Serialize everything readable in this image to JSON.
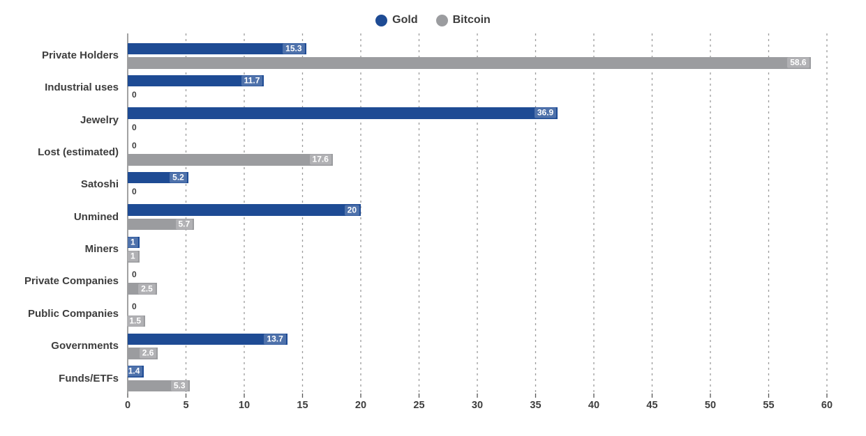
{
  "legend": {
    "items": [
      {
        "label": "Gold"
      },
      {
        "label": "Bitcoin"
      }
    ]
  },
  "chart_data": {
    "type": "bar",
    "orientation": "horizontal",
    "title": "",
    "xlabel": "",
    "ylabel": "",
    "categories": [
      "Private Holders",
      "Industrial uses",
      "Jewelry",
      "Lost (estimated)",
      "Satoshi",
      "Unmined",
      "Miners",
      "Private Companies",
      "Public Companies",
      "Governments",
      "Funds/ETFs"
    ],
    "series": [
      {
        "name": "Gold",
        "color": "#1e4b94",
        "values": [
          15.3,
          11.7,
          36.9,
          0,
          5.2,
          20,
          1,
          0,
          0,
          13.7,
          1.4
        ]
      },
      {
        "name": "Bitcoin",
        "color": "#9b9c9f",
        "values": [
          58.6,
          0,
          0,
          17.6,
          0,
          5.7,
          1,
          2.5,
          1.5,
          2.6,
          5.3
        ]
      }
    ],
    "x_ticks": [
      0,
      5,
      10,
      15,
      20,
      25,
      30,
      35,
      40,
      45,
      50,
      55,
      60
    ],
    "xlim": [
      0,
      60
    ],
    "grid": "vertical-dashed",
    "gridline_color": "#9b9b9b",
    "axis_line_color": "#8a8a8a",
    "tick_label_color": "#3d3d3d",
    "category_label_color": "#3d3d3d",
    "legend_position": "top-center"
  }
}
